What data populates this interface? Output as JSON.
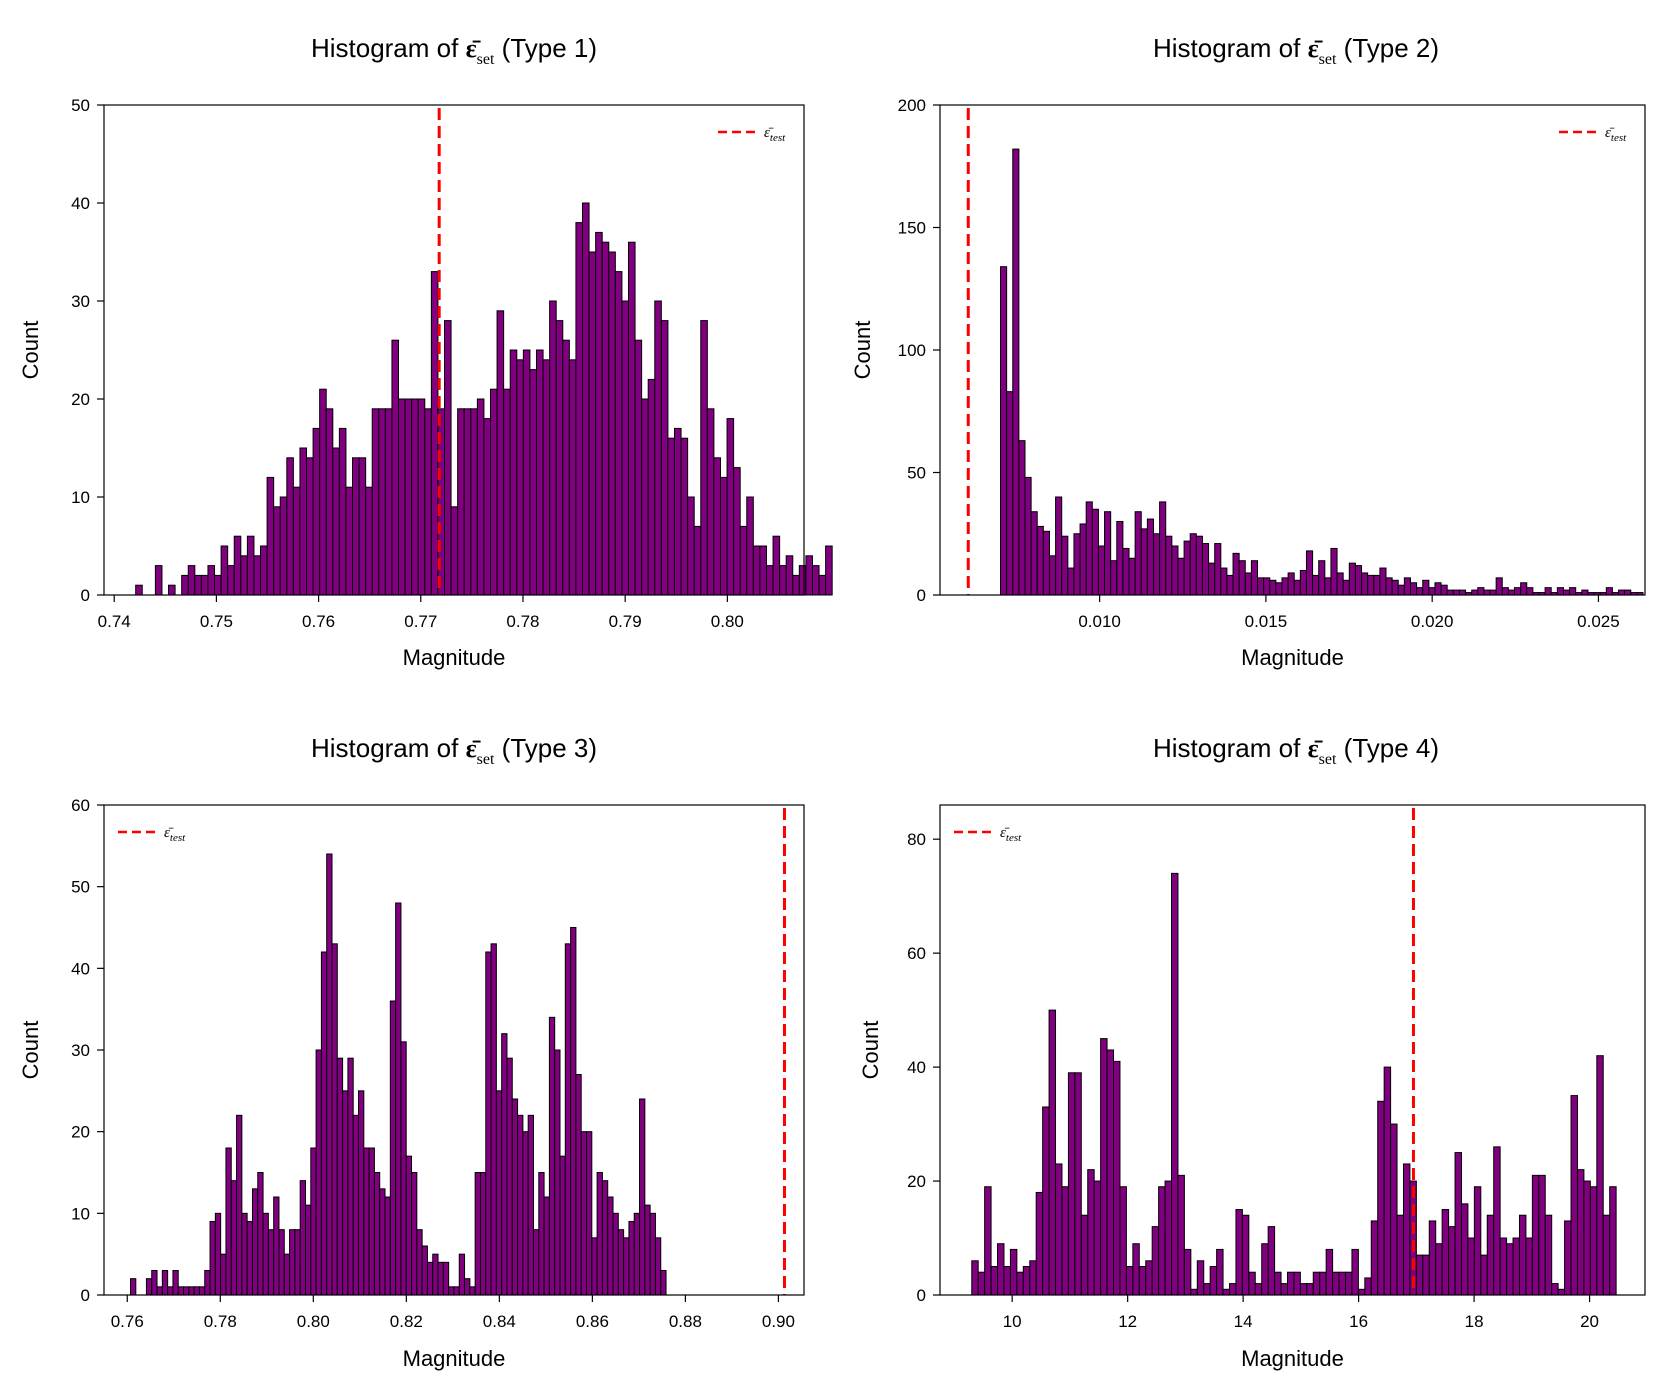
{
  "colors": {
    "bar_fill": "#800080",
    "bar_stroke": "#000000",
    "ref_line": "#ff0000"
  },
  "chart_data": [
    {
      "type": "bar",
      "title_prefix": "Histogram of",
      "title_symbol": "ε̄",
      "title_subscript": "set",
      "title_suffix": "(Type 1)",
      "xlabel": "Magnitude",
      "ylabel": "Count",
      "xlim": [
        0.739,
        0.8075
      ],
      "ylim": [
        0,
        50
      ],
      "xticks": [
        "0.74",
        "0.75",
        "0.76",
        "0.77",
        "0.78",
        "0.79",
        "0.80"
      ],
      "xtick_values": [
        0.74,
        0.75,
        0.76,
        0.77,
        0.78,
        0.79,
        0.8
      ],
      "yticks": [
        "0",
        "10",
        "20",
        "30",
        "40",
        "50"
      ],
      "ytick_values": [
        0,
        10,
        20,
        30,
        40,
        50
      ],
      "bin_start": 0.7421,
      "bin_width": 0.000643,
      "counts": [
        1,
        0,
        0,
        3,
        0,
        1,
        0,
        2,
        3,
        2,
        2,
        3,
        2,
        5,
        3,
        6,
        4,
        6,
        4,
        5,
        12,
        9,
        10,
        14,
        11,
        15,
        14,
        17,
        21,
        19,
        15,
        17,
        11,
        14,
        14,
        11,
        19,
        19,
        19,
        26,
        20,
        20,
        20,
        20,
        19,
        33,
        19,
        28,
        9,
        19,
        19,
        19,
        20,
        18,
        21,
        29,
        21,
        25,
        24,
        25,
        23,
        25,
        24,
        30,
        28,
        26,
        24,
        38,
        40,
        35,
        37,
        36,
        35,
        33,
        30,
        36,
        26,
        20,
        22,
        30,
        28,
        16,
        17,
        16,
        10,
        7,
        28,
        19,
        14,
        12,
        18,
        13,
        7,
        10,
        5,
        5,
        3,
        6,
        3,
        4,
        2,
        3,
        4,
        3,
        2,
        5
      ],
      "ref_value": 0.7718,
      "legend_label": "ε̄",
      "legend_subscript": "test",
      "legend_position": "top-right"
    },
    {
      "type": "bar",
      "title_prefix": "Histogram of",
      "title_symbol": "ε̄",
      "title_subscript": "set",
      "title_suffix": "(Type 2)",
      "xlabel": "Magnitude",
      "ylabel": "Count",
      "xlim": [
        0.0052,
        0.0264
      ],
      "ylim": [
        0,
        200
      ],
      "xticks": [
        "0.010",
        "0.015",
        "0.020",
        "0.025"
      ],
      "xtick_values": [
        0.01,
        0.015,
        0.02,
        0.025
      ],
      "yticks": [
        "0",
        "50",
        "100",
        "150",
        "200"
      ],
      "ytick_values": [
        0,
        50,
        100,
        150,
        200
      ],
      "bin_start": 0.00702,
      "bin_width": 0.000184,
      "counts": [
        134,
        83,
        182,
        63,
        48,
        34,
        28,
        26,
        16,
        40,
        24,
        11,
        25,
        29,
        38,
        35,
        20,
        34,
        14,
        30,
        19,
        15,
        34,
        27,
        31,
        25,
        38,
        24,
        20,
        15,
        22,
        25,
        24,
        21,
        13,
        21,
        11,
        8,
        17,
        14,
        9,
        14,
        7,
        7,
        6,
        5,
        7,
        9,
        6,
        10,
        18,
        8,
        14,
        7,
        19,
        9,
        6,
        13,
        12,
        9,
        8,
        8,
        11,
        7,
        6,
        4,
        7,
        5,
        3,
        6,
        3,
        5,
        4,
        2,
        2,
        2,
        1,
        2,
        3,
        2,
        2,
        7,
        3,
        2,
        3,
        5,
        3,
        1,
        1,
        3,
        1,
        3,
        2,
        3,
        1,
        2,
        1,
        1,
        1,
        3,
        1,
        2,
        2,
        1,
        1
      ],
      "ref_value": 0.00605,
      "legend_label": "ε̄",
      "legend_subscript": "test",
      "legend_position": "top-right"
    },
    {
      "type": "bar",
      "title_prefix": "Histogram of",
      "title_symbol": "ε̄",
      "title_subscript": "set",
      "title_suffix": "(Type 3)",
      "xlabel": "Magnitude",
      "ylabel": "Count",
      "xlim": [
        0.755,
        0.9055
      ],
      "ylim": [
        0,
        60
      ],
      "xticks": [
        "0.76",
        "0.78",
        "0.80",
        "0.82",
        "0.84",
        "0.86",
        "0.88",
        "0.90"
      ],
      "xtick_values": [
        0.76,
        0.78,
        0.8,
        0.82,
        0.84,
        0.86,
        0.88,
        0.9
      ],
      "yticks": [
        "0",
        "10",
        "20",
        "30",
        "40",
        "50",
        "60"
      ],
      "ytick_values": [
        0,
        10,
        20,
        30,
        40,
        50,
        60
      ],
      "bin_start": 0.7607,
      "bin_width": 0.00114,
      "counts": [
        2,
        0,
        0,
        2,
        3,
        1,
        3,
        1,
        3,
        1,
        1,
        1,
        1,
        1,
        3,
        9,
        10,
        5,
        18,
        14,
        22,
        10,
        9,
        13,
        15,
        10,
        8,
        12,
        8,
        5,
        8,
        8,
        14,
        11,
        18,
        30,
        42,
        54,
        43,
        29,
        25,
        29,
        22,
        25,
        18,
        18,
        15,
        13,
        12,
        36,
        48,
        31,
        17,
        15,
        8,
        6,
        4,
        5,
        4,
        4,
        1,
        1,
        5,
        2,
        1,
        15,
        15,
        42,
        43,
        25,
        32,
        29,
        24,
        22,
        20,
        22,
        8,
        15,
        12,
        34,
        30,
        17,
        43,
        45,
        27,
        20,
        20,
        7,
        15,
        14,
        12,
        10,
        8,
        7,
        9,
        10,
        24,
        11,
        10,
        7,
        3
      ],
      "ref_value": 0.9013,
      "legend_label": "ε̄",
      "legend_subscript": "test",
      "legend_position": "top-left"
    },
    {
      "type": "bar",
      "title_prefix": "Histogram of",
      "title_symbol": "ε̄",
      "title_subscript": "set",
      "title_suffix": "(Type 4)",
      "xlabel": "Magnitude",
      "ylabel": "Count",
      "xlim": [
        8.75,
        20.96
      ],
      "ylim": [
        0,
        86
      ],
      "xticks": [
        "10",
        "12",
        "14",
        "16",
        "18",
        "20"
      ],
      "xtick_values": [
        10,
        12,
        14,
        16,
        18,
        20
      ],
      "yticks": [
        "0",
        "20",
        "40",
        "60",
        "80"
      ],
      "ytick_values": [
        0,
        20,
        40,
        60,
        80
      ],
      "bin_start": 9.3,
      "bin_width": 0.1116,
      "counts": [
        6,
        4,
        19,
        5,
        9,
        5,
        8,
        4,
        5,
        6,
        18,
        33,
        50,
        23,
        19,
        39,
        39,
        14,
        22,
        20,
        45,
        43,
        41,
        19,
        5,
        9,
        5,
        6,
        12,
        19,
        20,
        74,
        21,
        8,
        1,
        6,
        2,
        5,
        8,
        1,
        2,
        15,
        14,
        4,
        2,
        9,
        12,
        4,
        2,
        4,
        4,
        2,
        2,
        4,
        4,
        8,
        4,
        4,
        4,
        8,
        1,
        3,
        13,
        34,
        40,
        30,
        14,
        23,
        20,
        7,
        7,
        13,
        9,
        15,
        12,
        25,
        16,
        10,
        19,
        7,
        14,
        26,
        10,
        9,
        10,
        14,
        10,
        21,
        21,
        14,
        2,
        1,
        13,
        35,
        22,
        20,
        19,
        42,
        14,
        19
      ],
      "ref_value": 16.95,
      "legend_label": "ε̄",
      "legend_subscript": "test",
      "legend_position": "top-left"
    }
  ]
}
